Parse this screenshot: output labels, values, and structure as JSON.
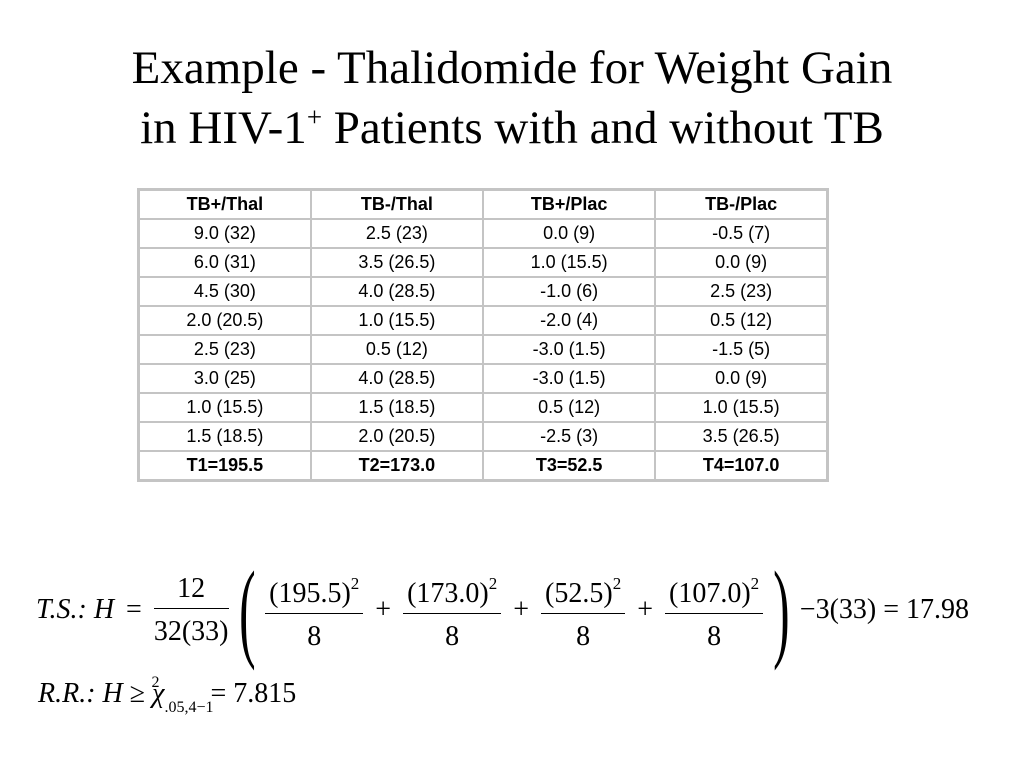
{
  "title": {
    "line1": "Example - Thalidomide for Weight Gain",
    "line2_prefix": "in HIV-1",
    "line2_sup": "+",
    "line2_suffix": " Patients with and without TB"
  },
  "table": {
    "headers": [
      "TB+/Thal",
      "TB-/Thal",
      "TB+/Plac",
      "TB-/Plac"
    ],
    "rows": [
      [
        "9.0 (32)",
        "2.5 (23)",
        "0.0 (9)",
        "-0.5 (7)"
      ],
      [
        "6.0 (31)",
        "3.5 (26.5)",
        "1.0 (15.5)",
        "0.0 (9)"
      ],
      [
        "4.5 (30)",
        "4.0 (28.5)",
        "-1.0 (6)",
        "2.5 (23)"
      ],
      [
        "2.0 (20.5)",
        "1.0 (15.5)",
        "-2.0 (4)",
        "0.5 (12)"
      ],
      [
        "2.5 (23)",
        "0.5 (12)",
        "-3.0 (1.5)",
        "-1.5 (5)"
      ],
      [
        "3.0 (25)",
        "4.0 (28.5)",
        "-3.0 (1.5)",
        "0.0 (9)"
      ],
      [
        "1.0 (15.5)",
        "1.5 (18.5)",
        "0.5 (12)",
        "1.0 (15.5)"
      ],
      [
        "1.5 (18.5)",
        "2.0 (20.5)",
        "-2.5 (3)",
        "3.5 (26.5)"
      ]
    ],
    "totals": [
      "T1=195.5",
      "T2=173.0",
      "T3=52.5",
      "T4=107.0"
    ]
  },
  "formula_ts": {
    "label": "T.S.: H",
    "eq": "=",
    "lead_num": "12",
    "lead_den": "32(33)",
    "terms": [
      {
        "num": "(195.5)",
        "den": "8"
      },
      {
        "num": "(173.0)",
        "den": "8"
      },
      {
        "num": "(52.5)",
        "den": "8"
      },
      {
        "num": "(107.0)",
        "den": "8"
      }
    ],
    "exponent": "2",
    "plus": "+",
    "tail": "−3(33) = 17.98"
  },
  "formula_rr": {
    "label": "R.R.: H",
    "geq": "≥",
    "chi": "χ",
    "chi_sup": "2",
    "chi_sub": ".05,4−1",
    "rhs": "= 7.815"
  }
}
